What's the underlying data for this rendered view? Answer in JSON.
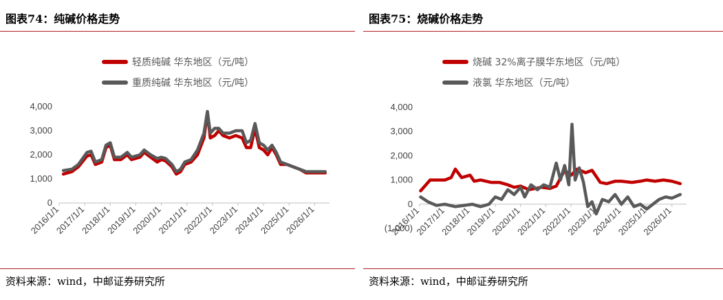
{
  "left": {
    "title": "图表74：纯碱价格走势",
    "source": "资料来源：wind，中邮证券研究所",
    "colors": {
      "series1": "#c00000",
      "series2": "#595959"
    },
    "chart_data": {
      "type": "line",
      "series": [
        {
          "name": "轻质纯碱 华东地区（元/吨）",
          "points": [
            [
              "2016-03-01",
              1200
            ],
            [
              "2016-07-01",
              1300
            ],
            [
              "2016-10-01",
              1500
            ],
            [
              "2017-02-01",
              1950
            ],
            [
              "2017-04-01",
              2000
            ],
            [
              "2017-06-01",
              1600
            ],
            [
              "2017-09-01",
              1700
            ],
            [
              "2017-11-01",
              2300
            ],
            [
              "2018-01-01",
              2400
            ],
            [
              "2018-03-01",
              1800
            ],
            [
              "2018-06-01",
              1800
            ],
            [
              "2018-09-01",
              2000
            ],
            [
              "2018-11-01",
              1800
            ],
            [
              "2019-03-01",
              1900
            ],
            [
              "2019-05-01",
              2100
            ],
            [
              "2019-08-01",
              1900
            ],
            [
              "2019-11-01",
              1700
            ],
            [
              "2020-01-01",
              1800
            ],
            [
              "2020-03-01",
              1750
            ],
            [
              "2020-06-01",
              1500
            ],
            [
              "2020-08-01",
              1200
            ],
            [
              "2020-10-01",
              1300
            ],
            [
              "2020-12-01",
              1600
            ],
            [
              "2021-03-01",
              1700
            ],
            [
              "2021-06-01",
              2000
            ],
            [
              "2021-09-01",
              2700
            ],
            [
              "2021-10-20",
              3750
            ],
            [
              "2021-12-01",
              2700
            ],
            [
              "2022-02-01",
              2800
            ],
            [
              "2022-04-01",
              3000
            ],
            [
              "2022-06-01",
              2800
            ],
            [
              "2022-09-01",
              2700
            ],
            [
              "2022-12-01",
              2800
            ],
            [
              "2023-03-01",
              2700
            ],
            [
              "2023-05-01",
              2300
            ],
            [
              "2023-07-01",
              2300
            ],
            [
              "2023-09-01",
              3100
            ],
            [
              "2023-11-01",
              2300
            ],
            [
              "2024-01-01",
              2200
            ],
            [
              "2024-03-01",
              2000
            ],
            [
              "2024-05-01",
              2300
            ],
            [
              "2024-07-01",
              2000
            ],
            [
              "2024-09-01",
              1600
            ],
            [
              "2024-12-01",
              1600
            ],
            [
              "2025-03-01",
              1500
            ],
            [
              "2025-06-01",
              1400
            ],
            [
              "2025-09-01",
              1250
            ],
            [
              "2026-01-01",
              1250
            ],
            [
              "2026-06-01",
              1250
            ]
          ]
        },
        {
          "name": "重质纯碱 华东地区（元/吨）",
          "points": [
            [
              "2016-03-01",
              1350
            ],
            [
              "2016-07-01",
              1400
            ],
            [
              "2016-10-01",
              1600
            ],
            [
              "2017-02-01",
              2100
            ],
            [
              "2017-04-01",
              2150
            ],
            [
              "2017-06-01",
              1700
            ],
            [
              "2017-09-01",
              1800
            ],
            [
              "2017-11-01",
              2400
            ],
            [
              "2018-01-01",
              2500
            ],
            [
              "2018-03-01",
              1900
            ],
            [
              "2018-06-01",
              1900
            ],
            [
              "2018-09-01",
              2100
            ],
            [
              "2018-11-01",
              1900
            ],
            [
              "2019-03-01",
              2000
            ],
            [
              "2019-05-01",
              2200
            ],
            [
              "2019-08-01",
              2000
            ],
            [
              "2019-11-01",
              1850
            ],
            [
              "2020-01-01",
              1900
            ],
            [
              "2020-03-01",
              1850
            ],
            [
              "2020-06-01",
              1600
            ],
            [
              "2020-08-01",
              1300
            ],
            [
              "2020-10-01",
              1400
            ],
            [
              "2020-12-01",
              1700
            ],
            [
              "2021-03-01",
              1800
            ],
            [
              "2021-06-01",
              2200
            ],
            [
              "2021-09-01",
              2900
            ],
            [
              "2021-10-20",
              3800
            ],
            [
              "2021-12-01",
              2900
            ],
            [
              "2022-02-01",
              3100
            ],
            [
              "2022-04-01",
              3100
            ],
            [
              "2022-06-01",
              2900
            ],
            [
              "2022-09-01",
              2900
            ],
            [
              "2022-12-01",
              3000
            ],
            [
              "2023-03-01",
              3000
            ],
            [
              "2023-05-01",
              2500
            ],
            [
              "2023-07-01",
              2600
            ],
            [
              "2023-09-01",
              3300
            ],
            [
              "2023-11-01",
              2500
            ],
            [
              "2024-01-01",
              2400
            ],
            [
              "2024-03-01",
              2200
            ],
            [
              "2024-05-01",
              2400
            ],
            [
              "2024-07-01",
              2100
            ],
            [
              "2024-09-01",
              1700
            ],
            [
              "2024-12-01",
              1600
            ],
            [
              "2025-03-01",
              1500
            ],
            [
              "2025-06-01",
              1400
            ],
            [
              "2025-09-01",
              1300
            ],
            [
              "2026-01-01",
              1300
            ],
            [
              "2026-06-01",
              1300
            ]
          ]
        }
      ],
      "y_ticks": [
        "4,000",
        "3,000",
        "2,000",
        "1,000",
        "0"
      ],
      "x_ticks": [
        "2016/1/1",
        "2017/1/1",
        "2018/1/1",
        "2019/1/1",
        "2020/1/1",
        "2021/1/1",
        "2022/1/1",
        "2023/1/1",
        "2024/1/1",
        "2025/1/1",
        "2026/1/1"
      ],
      "ylim": [
        0,
        4000
      ],
      "xlim": [
        "2016-01-01",
        "2026-08-01"
      ],
      "grid": false,
      "legend_position": "top"
    }
  },
  "right": {
    "title": "图表75：烧碱价格走势",
    "source": "资料来源：wind，中邮证券研究所",
    "colors": {
      "series1": "#c00000",
      "series2": "#595959",
      "negative_tick": "#c00000"
    },
    "chart_data": {
      "type": "line",
      "series": [
        {
          "name": "烧碱 32%离子膜华东地区（元/吨）",
          "points": [
            [
              "2016-01-15",
              550
            ],
            [
              "2016-06-01",
              1000
            ],
            [
              "2017-01-01",
              1000
            ],
            [
              "2017-04-01",
              1100
            ],
            [
              "2017-06-01",
              1450
            ],
            [
              "2017-09-01",
              1100
            ],
            [
              "2018-01-01",
              1200
            ],
            [
              "2018-03-01",
              950
            ],
            [
              "2018-06-01",
              1000
            ],
            [
              "2018-11-01",
              900
            ],
            [
              "2019-03-01",
              900
            ],
            [
              "2019-07-01",
              800
            ],
            [
              "2019-10-01",
              700
            ],
            [
              "2020-01-01",
              750
            ],
            [
              "2020-05-01",
              600
            ],
            [
              "2020-08-01",
              650
            ],
            [
              "2020-11-01",
              700
            ],
            [
              "2021-03-01",
              650
            ],
            [
              "2021-06-01",
              750
            ],
            [
              "2021-10-01",
              1400
            ],
            [
              "2022-01-01",
              1200
            ],
            [
              "2022-04-01",
              1450
            ],
            [
              "2022-08-01",
              1300
            ],
            [
              "2022-11-01",
              1400
            ],
            [
              "2023-03-01",
              900
            ],
            [
              "2023-06-01",
              850
            ],
            [
              "2023-10-01",
              950
            ],
            [
              "2024-01-01",
              950
            ],
            [
              "2024-06-01",
              900
            ],
            [
              "2024-10-01",
              950
            ],
            [
              "2025-01-01",
              1000
            ],
            [
              "2025-05-01",
              950
            ],
            [
              "2025-09-01",
              1000
            ],
            [
              "2026-01-01",
              950
            ],
            [
              "2026-05-01",
              850
            ]
          ]
        },
        {
          "name": "液氯 华东地区（元/吨）",
          "points": [
            [
              "2016-01-15",
              300
            ],
            [
              "2016-05-01",
              100
            ],
            [
              "2016-09-01",
              -50
            ],
            [
              "2017-01-01",
              0
            ],
            [
              "2017-06-01",
              -100
            ],
            [
              "2017-10-01",
              -50
            ],
            [
              "2018-02-01",
              0
            ],
            [
              "2018-06-01",
              -100
            ],
            [
              "2018-10-01",
              0
            ],
            [
              "2019-01-01",
              300
            ],
            [
              "2019-04-01",
              200
            ],
            [
              "2019-07-01",
              600
            ],
            [
              "2019-10-01",
              400
            ],
            [
              "2020-01-01",
              700
            ],
            [
              "2020-03-01",
              300
            ],
            [
              "2020-06-01",
              800
            ],
            [
              "2020-09-01",
              600
            ],
            [
              "2020-12-01",
              800
            ],
            [
              "2021-03-01",
              700
            ],
            [
              "2021-06-01",
              1700
            ],
            [
              "2021-08-01",
              1000
            ],
            [
              "2021-10-01",
              1600
            ],
            [
              "2021-12-01",
              800
            ],
            [
              "2022-01-15",
              3300
            ],
            [
              "2022-03-01",
              1000
            ],
            [
              "2022-05-01",
              1500
            ],
            [
              "2022-07-01",
              900
            ],
            [
              "2022-09-01",
              -100
            ],
            [
              "2022-11-01",
              100
            ],
            [
              "2023-01-01",
              -400
            ],
            [
              "2023-04-01",
              200
            ],
            [
              "2023-07-01",
              100
            ],
            [
              "2023-10-01",
              400
            ],
            [
              "2024-01-01",
              0
            ],
            [
              "2024-04-01",
              300
            ],
            [
              "2024-07-01",
              -100
            ],
            [
              "2024-10-01",
              0
            ],
            [
              "2025-01-01",
              -200
            ],
            [
              "2025-04-01",
              0
            ],
            [
              "2025-07-01",
              200
            ],
            [
              "2025-10-01",
              300
            ],
            [
              "2026-01-01",
              250
            ],
            [
              "2026-05-01",
              400
            ]
          ]
        }
      ],
      "y_ticks": [
        "4,000",
        "3,000",
        "2,000",
        "1,000",
        "0",
        "(1,000)"
      ],
      "x_ticks": [
        "2016/1/1",
        "2017/1/1",
        "2018/1/1",
        "2019/1/1",
        "2020/1/1",
        "2021/1/1",
        "2022/1/1",
        "2023/1/1",
        "2024/1/1",
        "2025/1/1",
        "2026/1/1"
      ],
      "ylim": [
        -1000,
        4000
      ],
      "xlim": [
        "2016-01-01",
        "2026-08-01"
      ],
      "grid": false,
      "legend_position": "top"
    }
  }
}
